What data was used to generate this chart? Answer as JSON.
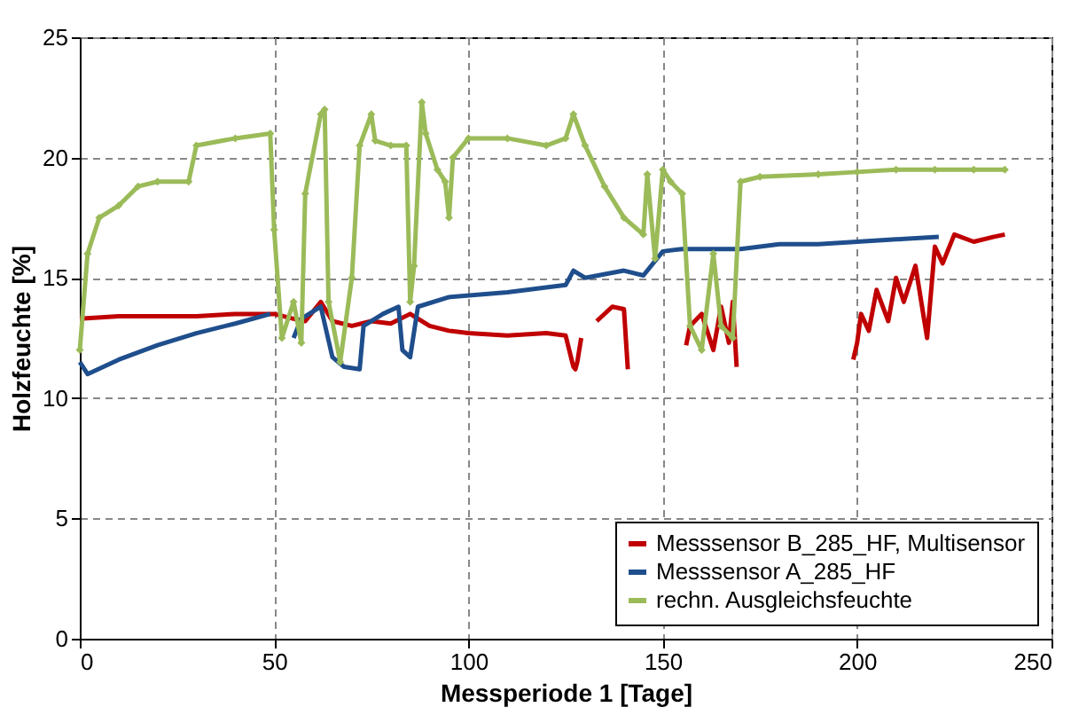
{
  "chart_data": {
    "type": "line",
    "xlabel": "Messperiode 1 [Tage]",
    "ylabel": "Holzfeuchte [%]",
    "xlim": [
      0,
      250
    ],
    "xticks": [
      0,
      50,
      100,
      150,
      200,
      250
    ],
    "ylim": [
      0,
      25
    ],
    "yticks": [
      0,
      5,
      10,
      15,
      20,
      25
    ],
    "grid": true,
    "legend": "bottom right",
    "line_style": "solid",
    "series": [
      {
        "name": "Messsensor B_285_HF, Multisensor",
        "color": "#c00000",
        "marker": "none",
        "x": [
          0,
          10,
          20,
          30,
          40,
          45,
          50,
          55,
          58,
          62,
          65,
          70,
          75,
          80,
          85,
          90,
          95,
          100,
          110,
          120,
          125,
          127,
          127.5,
          128,
          129,
          130,
          133,
          137,
          140,
          141,
          142,
          156,
          157,
          160,
          163,
          165,
          167,
          168,
          169,
          170,
          199,
          200,
          201,
          203,
          205,
          208,
          210,
          212,
          215,
          218,
          220,
          222,
          225,
          230,
          235,
          238
        ],
        "values": [
          13.3,
          13.4,
          13.4,
          13.4,
          13.5,
          13.5,
          13.5,
          13.3,
          13.2,
          14.0,
          13.2,
          13.0,
          13.2,
          13.1,
          13.5,
          13.0,
          12.8,
          12.7,
          12.6,
          12.7,
          12.6,
          11.3,
          11.2,
          11.5,
          12.5,
          null,
          13.2,
          13.8,
          13.7,
          11.2,
          null,
          12.2,
          13.0,
          13.5,
          12.0,
          13.8,
          12.3,
          14.0,
          11.3,
          null,
          11.6,
          12.3,
          13.5,
          12.8,
          14.5,
          13.2,
          15.0,
          14.0,
          15.5,
          12.5,
          16.3,
          15.6,
          16.8,
          16.5,
          16.7,
          16.8
        ]
      },
      {
        "name": "Messsensor A_285_HF",
        "color": "#1f4e8c",
        "marker": "none",
        "x": [
          0,
          2,
          10,
          20,
          30,
          40,
          49,
          50,
          55,
          57,
          62,
          65,
          68,
          72,
          73,
          78,
          82,
          83,
          85,
          87,
          95,
          110,
          125,
          127,
          130,
          140,
          145,
          150,
          155,
          170,
          180,
          190,
          200,
          210,
          221
        ],
        "values": [
          11.5,
          11.0,
          11.6,
          12.2,
          12.7,
          13.1,
          13.5,
          null,
          12.5,
          13.3,
          13.8,
          11.7,
          11.3,
          11.2,
          13.0,
          13.5,
          13.8,
          12.0,
          11.7,
          13.8,
          14.2,
          14.4,
          14.7,
          15.3,
          15.0,
          15.3,
          15.1,
          16.1,
          16.2,
          16.2,
          16.4,
          16.4,
          16.5,
          16.6,
          16.7
        ]
      },
      {
        "name": "rechn. Ausgleichsfeuchte",
        "color": "#9bbb59",
        "marker": "diamond",
        "x": [
          0,
          2,
          5,
          10,
          15,
          20,
          28,
          30,
          40,
          49,
          50,
          52,
          55,
          57,
          58,
          62,
          63,
          64,
          67,
          70,
          72,
          75,
          76,
          80,
          84,
          85,
          86,
          88,
          89,
          92,
          94,
          95,
          96,
          100,
          110,
          120,
          125,
          127,
          130,
          135,
          140,
          145,
          146,
          148,
          150,
          152,
          155,
          157,
          160,
          163,
          165,
          168,
          170,
          175,
          190,
          200,
          210,
          220,
          230,
          238
        ],
        "values": [
          12.0,
          16.0,
          17.5,
          18.0,
          18.8,
          19.0,
          19.0,
          20.5,
          20.8,
          21.0,
          17.0,
          12.5,
          14.0,
          12.3,
          18.5,
          21.8,
          22.0,
          14.0,
          11.5,
          15.0,
          20.5,
          21.8,
          20.7,
          20.5,
          20.5,
          14.0,
          15.5,
          22.3,
          21.0,
          19.5,
          19.0,
          17.5,
          20.0,
          20.8,
          20.8,
          20.5,
          20.8,
          21.8,
          20.5,
          18.8,
          17.5,
          16.8,
          19.3,
          15.8,
          19.5,
          19.0,
          18.5,
          13.0,
          12.0,
          16.0,
          13.0,
          12.5,
          19.0,
          19.2,
          19.3,
          19.4,
          19.5,
          19.5,
          19.5,
          19.5
        ]
      }
    ]
  }
}
